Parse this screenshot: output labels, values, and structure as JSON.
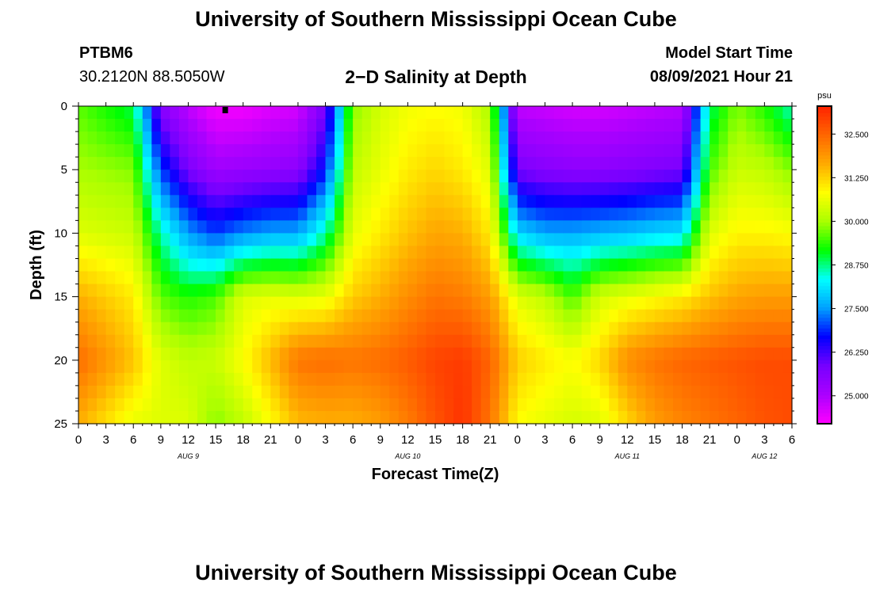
{
  "header": {
    "title": "University of Southern Mississippi Ocean Cube",
    "station_id": "PTBM6",
    "station_coords": "30.2120N  88.5050W",
    "plot_title": "2−D Salinity at Depth",
    "model_start_label": "Model Start Time",
    "model_start_value": "08/09/2021 Hour 21"
  },
  "footer": {
    "title": "University of Southern Mississippi Ocean Cube"
  },
  "chart_data": {
    "type": "heatmap",
    "title": "2−D Salinity at Depth",
    "xlabel": "Forecast Time(Z)",
    "ylabel": "Depth (ft)",
    "x_tick_labels": [
      "0",
      "3",
      "6",
      "9",
      "12",
      "15",
      "18",
      "21",
      "0",
      "3",
      "6",
      "9",
      "12",
      "15",
      "18",
      "21",
      "0",
      "3",
      "6",
      "9",
      "12",
      "15",
      "18",
      "21",
      "0",
      "3",
      "6"
    ],
    "date_labels": [
      {
        "label": "AUG 9",
        "tick_index": 4
      },
      {
        "label": "AUG 10",
        "tick_index": 12
      },
      {
        "label": "AUG 11",
        "tick_index": 20
      },
      {
        "label": "AUG 12",
        "tick_index": 25
      }
    ],
    "y_ticks": [
      0,
      5,
      10,
      15,
      20,
      25
    ],
    "ylim": [
      0,
      25
    ],
    "y_inverted": true,
    "colorbar": {
      "unit": "psu",
      "tick_labels": [
        "32.500",
        "31.250",
        "30.000",
        "28.750",
        "27.500",
        "26.250",
        "25.000"
      ],
      "range": [
        24.2,
        33.3
      ],
      "colors": [
        "#ff00ff",
        "#aa00ff",
        "#7700ff",
        "#0000ff",
        "#00a0ff",
        "#00ffff",
        "#00ff00",
        "#aaff00",
        "#ffff00",
        "#ffaa00",
        "#ff6600",
        "#ff2200"
      ]
    },
    "salinity_profiles": [
      {
        "hour": 0,
        "depths": [
          0,
          5,
          10,
          15,
          20,
          25
        ],
        "values": [
          29.6,
          30.0,
          30.5,
          31.6,
          32.4,
          31.6
        ]
      },
      {
        "hour": 6,
        "depths": [
          0,
          5,
          10,
          15,
          20,
          25
        ],
        "values": [
          28.9,
          29.8,
          30.3,
          31.0,
          31.4,
          30.6
        ]
      },
      {
        "hour": 9,
        "depths": [
          0,
          5,
          10,
          15,
          20,
          25
        ],
        "values": [
          25.6,
          27.0,
          28.6,
          29.6,
          30.5,
          30.5
        ]
      },
      {
        "hour": 12,
        "depths": [
          0,
          5,
          10,
          15,
          20,
          25
        ],
        "values": [
          24.8,
          25.8,
          27.5,
          29.3,
          30.2,
          30.5
        ]
      },
      {
        "hour": 15,
        "depths": [
          0,
          5,
          10,
          15,
          20,
          25
        ],
        "values": [
          24.3,
          25.2,
          27.0,
          29.5,
          30.3,
          29.8
        ]
      },
      {
        "hour": 18,
        "depths": [
          0,
          5,
          10,
          15,
          20,
          25
        ],
        "values": [
          24.3,
          25.3,
          27.4,
          30.5,
          30.8,
          30.2
        ]
      },
      {
        "hour": 21,
        "depths": [
          0,
          5,
          10,
          15,
          20,
          25
        ],
        "values": [
          24.5,
          25.4,
          27.6,
          30.6,
          31.5,
          30.8
        ]
      },
      {
        "hour": 24,
        "depths": [
          0,
          5,
          10,
          15,
          20,
          25
        ],
        "values": [
          24.6,
          25.5,
          27.6,
          30.5,
          32.3,
          31.5
        ]
      },
      {
        "hour": 27,
        "depths": [
          0,
          5,
          10,
          15,
          20,
          25
        ],
        "values": [
          25.8,
          26.8,
          28.6,
          30.6,
          32.4,
          31.6
        ]
      },
      {
        "hour": 30,
        "depths": [
          0,
          5,
          10,
          15,
          20,
          25
        ],
        "values": [
          29.8,
          30.2,
          30.6,
          31.3,
          32.3,
          31.6
        ]
      },
      {
        "hour": 33,
        "depths": [
          0,
          5,
          10,
          15,
          20,
          25
        ],
        "values": [
          30.4,
          30.6,
          31.0,
          31.6,
          32.4,
          31.8
        ]
      },
      {
        "hour": 36,
        "depths": [
          0,
          5,
          10,
          15,
          20,
          25
        ],
        "values": [
          30.7,
          31.0,
          31.4,
          32.0,
          32.6,
          32.2
        ]
      },
      {
        "hour": 39,
        "depths": [
          0,
          5,
          10,
          15,
          20,
          25
        ],
        "values": [
          30.8,
          31.2,
          31.7,
          32.3,
          32.9,
          32.7
        ]
      },
      {
        "hour": 42,
        "depths": [
          0,
          5,
          10,
          15,
          20,
          25
        ],
        "values": [
          30.7,
          31.0,
          31.6,
          32.2,
          33.0,
          33.1
        ]
      },
      {
        "hour": 45,
        "depths": [
          0,
          5,
          10,
          15,
          20,
          25
        ],
        "values": [
          30.0,
          30.5,
          31.0,
          31.8,
          32.5,
          32.3
        ]
      },
      {
        "hour": 48,
        "depths": [
          0,
          5,
          10,
          15,
          20,
          25
        ],
        "values": [
          24.8,
          25.8,
          28.0,
          30.5,
          31.3,
          30.8
        ]
      },
      {
        "hour": 51,
        "depths": [
          0,
          5,
          10,
          15,
          20,
          25
        ],
        "values": [
          24.7,
          25.6,
          27.6,
          30.2,
          31.0,
          30.6
        ]
      },
      {
        "hour": 54,
        "depths": [
          0,
          5,
          10,
          15,
          20,
          25
        ],
        "values": [
          24.6,
          25.5,
          27.6,
          29.5,
          30.8,
          30.4
        ]
      },
      {
        "hour": 57,
        "depths": [
          0,
          5,
          10,
          15,
          20,
          25
        ],
        "values": [
          24.6,
          25.5,
          27.7,
          30.4,
          31.2,
          30.5
        ]
      },
      {
        "hour": 60,
        "depths": [
          0,
          5,
          10,
          15,
          20,
          25
        ],
        "values": [
          24.7,
          25.6,
          27.8,
          30.6,
          32.0,
          31.2
        ]
      },
      {
        "hour": 63,
        "depths": [
          0,
          5,
          10,
          15,
          20,
          25
        ],
        "values": [
          24.8,
          25.7,
          28.0,
          30.8,
          32.3,
          31.8
        ]
      },
      {
        "hour": 66,
        "depths": [
          0,
          5,
          10,
          15,
          20,
          25
        ],
        "values": [
          24.9,
          25.8,
          28.1,
          31.0,
          32.5,
          32.1
        ]
      },
      {
        "hour": 69,
        "depths": [
          0,
          5,
          10,
          15,
          20,
          25
        ],
        "values": [
          28.8,
          29.5,
          30.5,
          31.4,
          32.6,
          32.3
        ]
      },
      {
        "hour": 72,
        "depths": [
          0,
          5,
          10,
          15,
          20,
          25
        ],
        "values": [
          29.8,
          30.3,
          30.9,
          31.7,
          32.7,
          32.5
        ]
      },
      {
        "hour": 75,
        "depths": [
          0,
          5,
          10,
          15,
          20,
          25
        ],
        "values": [
          29.3,
          30.2,
          30.9,
          31.8,
          32.8,
          32.7
        ]
      },
      {
        "hour": 78,
        "depths": [
          0,
          5,
          10,
          15,
          20,
          25
        ],
        "values": [
          28.5,
          29.8,
          30.8,
          31.8,
          32.8,
          32.8
        ]
      }
    ]
  }
}
